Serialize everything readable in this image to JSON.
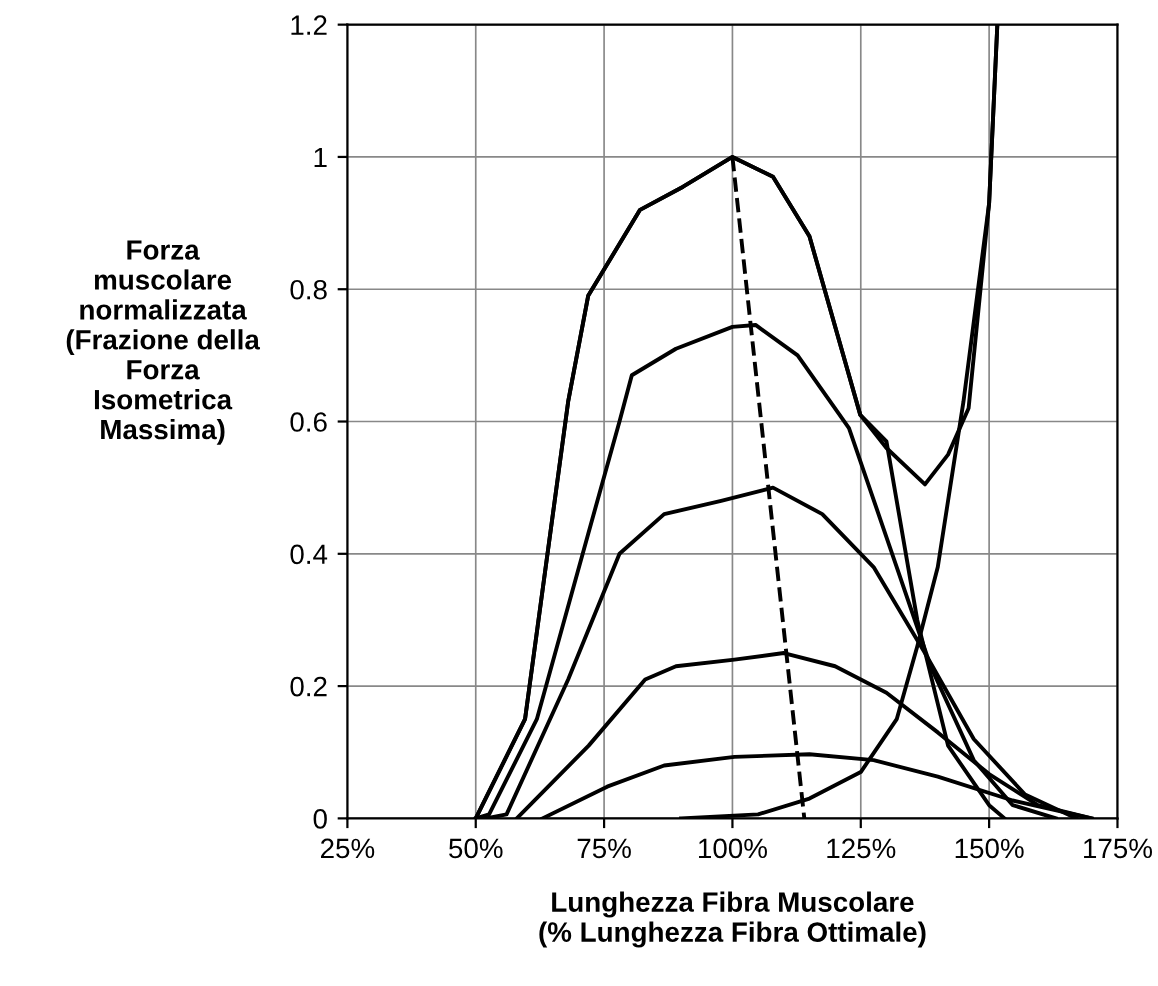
{
  "chart_data": {
    "type": "line",
    "xlabel": "Lunghezza Fibra Muscolare\n(% Lunghezza Fibra Ottimale)",
    "ylabel": "Forza\nmuscolare\nnormalizzata\n(Frazione della\nForza\nIsometrica\nMassima)",
    "xlim": [
      25,
      175
    ],
    "ylim": [
      0,
      1.2
    ],
    "xticks": [
      {
        "value": 25,
        "label": "25%"
      },
      {
        "value": 50,
        "label": "50%"
      },
      {
        "value": 75,
        "label": "75%"
      },
      {
        "value": 100,
        "label": "100%"
      },
      {
        "value": 125,
        "label": "125%"
      },
      {
        "value": 150,
        "label": "150%"
      },
      {
        "value": 175,
        "label": "175%"
      }
    ],
    "yticks": [
      0,
      0.2,
      0.4,
      0.6,
      0.8,
      1,
      1.2
    ],
    "grid": true,
    "marker": "none",
    "line_style": "solid",
    "series": [
      {
        "color": "#000000",
        "x": [
          50,
          59.6,
          68,
          71.9,
          82,
          90.4,
          100,
          107.9,
          115,
          124.9,
          130,
          137.5,
          142,
          146,
          150,
          151.6
        ],
        "values": [
          0,
          0.15,
          0.63,
          0.79,
          0.92,
          0.955,
          1.0,
          0.97,
          0.88,
          0.61,
          0.56,
          0.505,
          0.55,
          0.62,
          0.93,
          1.2
        ]
      },
      {
        "color": "#000000",
        "x": [
          50,
          59.6,
          68,
          71.9,
          82,
          90.4,
          100,
          107.9,
          115,
          124.9,
          130,
          136,
          142,
          150,
          153
        ],
        "values": [
          0,
          0.15,
          0.63,
          0.79,
          0.92,
          0.955,
          1.0,
          0.97,
          0.88,
          0.61,
          0.57,
          0.3,
          0.11,
          0.02,
          0
        ]
      },
      {
        "color": "#000000",
        "x": [
          50,
          52.6,
          61.9,
          71.9,
          78,
          80.4,
          89,
          100,
          104.5,
          112.7,
          122.7,
          132,
          138.6,
          147,
          154.6,
          163
        ],
        "values": [
          0,
          0.006,
          0.15,
          0.43,
          0.6,
          0.67,
          0.71,
          0.743,
          0.746,
          0.7,
          0.59,
          0.38,
          0.23,
          0.088,
          0.02,
          0
        ]
      },
      {
        "color": "#000000",
        "x": [
          52,
          56,
          68,
          78,
          86.7,
          97.8,
          107.9,
          117.5,
          127.5,
          137.5,
          147,
          157,
          167
        ],
        "values": [
          0,
          0.006,
          0.21,
          0.4,
          0.46,
          0.48,
          0.5,
          0.46,
          0.38,
          0.25,
          0.12,
          0.036,
          0
        ]
      },
      {
        "color": "#000000",
        "x": [
          58,
          72,
          83,
          89,
          100.4,
          110,
          120,
          130,
          140,
          150,
          159.5,
          170
        ],
        "values": [
          0,
          0.11,
          0.21,
          0.23,
          0.24,
          0.25,
          0.23,
          0.19,
          0.13,
          0.067,
          0.02,
          0
        ]
      },
      {
        "color": "#000000",
        "x": [
          63,
          75.6,
          86.7,
          100.4,
          115,
          127.5,
          140,
          154.6,
          170
        ],
        "values": [
          0,
          0.048,
          0.08,
          0.093,
          0.097,
          0.088,
          0.063,
          0.027,
          0
        ]
      },
      {
        "color": "#000000",
        "x": [
          90,
          105,
          115,
          125,
          132,
          136,
          140,
          145,
          150,
          151.6
        ],
        "values": [
          0,
          0.006,
          0.03,
          0.07,
          0.15,
          0.26,
          0.38,
          0.63,
          0.93,
          1.2
        ]
      },
      {
        "color": "#000000",
        "line_style": "dashed",
        "x": [
          100,
          114
        ],
        "values": [
          1.0,
          0
        ]
      }
    ]
  }
}
